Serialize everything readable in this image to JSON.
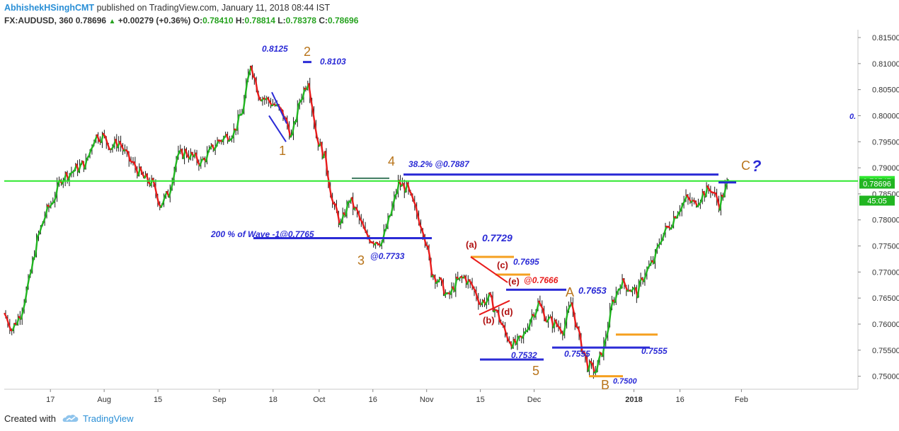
{
  "header": {
    "author": "AbhishekHSinghCMT",
    "published": "published on TradingView.com, January 11, 2018 08:44 IST",
    "symbol": "FX:AUDUSD, 360",
    "last": "0.78696",
    "change": "+0.00279 (+0.36%)",
    "ohlc": {
      "o_label": "O:",
      "o": "0.78410",
      "h_label": "H:",
      "h": "0.78814",
      "l_label": "L:",
      "l": "0.78378",
      "c_label": "C:",
      "c": "0.78696"
    }
  },
  "footer": {
    "created": "Created with",
    "brand": "TradingView"
  },
  "colors": {
    "up": "#21b521",
    "down": "#e81b1b",
    "level": "#2b2bd6",
    "hline": "#2fe82f",
    "wave": "#b8741a",
    "orange": "#f5a020",
    "axis_text": "#333333"
  },
  "chart_data": {
    "type": "line",
    "symbol": "FX:AUDUSD",
    "ylim": [
      0.7475,
      0.8165
    ],
    "y_ticks": [
      "0.81500",
      "0.81000",
      "0.80500",
      "0.80000",
      "0.79500",
      "0.79000",
      "0.78500",
      "0.78000",
      "0.77500",
      "0.77000",
      "0.76500",
      "0.76000",
      "0.75500",
      "0.75000"
    ],
    "x_ticks": [
      {
        "label": "17",
        "idx": 5
      },
      {
        "label": "Aug",
        "idx": 12
      },
      {
        "label": "15",
        "idx": 19
      },
      {
        "label": "Sep",
        "idx": 27
      },
      {
        "label": "18",
        "idx": 34
      },
      {
        "label": "Oct",
        "idx": 40
      },
      {
        "label": "16",
        "idx": 47
      },
      {
        "label": "Nov",
        "idx": 54
      },
      {
        "label": "15",
        "idx": 61
      },
      {
        "label": "Dec",
        "idx": 68
      },
      {
        "label": "2018",
        "idx": 81
      },
      {
        "label": "16",
        "idx": 87
      },
      {
        "label": "Feb",
        "idx": 95
      }
    ],
    "x_count": 105,
    "series": [
      {
        "values": [
          0.762,
          0.759,
          0.762,
          0.768,
          0.776,
          0.781,
          0.784,
          0.788,
          0.789,
          0.79,
          0.791,
          0.796,
          0.796,
          0.794,
          0.795,
          0.792,
          0.79,
          0.788,
          0.787,
          0.783,
          0.785,
          0.792,
          0.793,
          0.792,
          0.791,
          0.793,
          0.795,
          0.796,
          0.797,
          0.801,
          0.81,
          0.804,
          0.803,
          0.802,
          0.8,
          0.796,
          0.803,
          0.807,
          0.796,
          0.792,
          0.783,
          0.779,
          0.784,
          0.781,
          0.777,
          0.776,
          0.776,
          0.781,
          0.787,
          0.786,
          0.782,
          0.778,
          0.77,
          0.768,
          0.765,
          0.768,
          0.769,
          0.767,
          0.764,
          0.765,
          0.762,
          0.758,
          0.756,
          0.757,
          0.761,
          0.764,
          0.761,
          0.76,
          0.759,
          0.764,
          0.757,
          0.752,
          0.751,
          0.756,
          0.764,
          0.768,
          0.767,
          0.766,
          0.77,
          0.772,
          0.777,
          0.779,
          0.782,
          0.784,
          0.783,
          0.785,
          0.786,
          0.783,
          0.787
        ]
      }
    ],
    "hline": {
      "value": 0.78747,
      "label": "0.78747"
    },
    "last_price": {
      "value": 0.78696,
      "label": "0.78696"
    },
    "countdown": "45:05",
    "levels": [
      {
        "label": "200 % of Wave -1@0.7765"
      },
      {
        "label": "38.2% @0.7887"
      },
      {
        "label": "@0.7733"
      },
      {
        "label": "0.7729"
      },
      {
        "label": "0.7695"
      },
      {
        "label": "@0.7666"
      },
      {
        "label": "0.7653"
      },
      {
        "label": "0.7555"
      },
      {
        "label": "0.7555"
      },
      {
        "label": "0.7532"
      },
      {
        "label": "0.7500"
      },
      {
        "label": "0.8125"
      },
      {
        "label": "0.8103"
      }
    ],
    "wave_labels": [
      "1",
      "2",
      "3",
      "4",
      "5",
      "A",
      "B",
      "C"
    ],
    "sub_wave_labels": [
      "(a)",
      "(b)",
      "(c)",
      "(d)",
      "(e)"
    ],
    "question": "?",
    "edge_text": "0."
  }
}
